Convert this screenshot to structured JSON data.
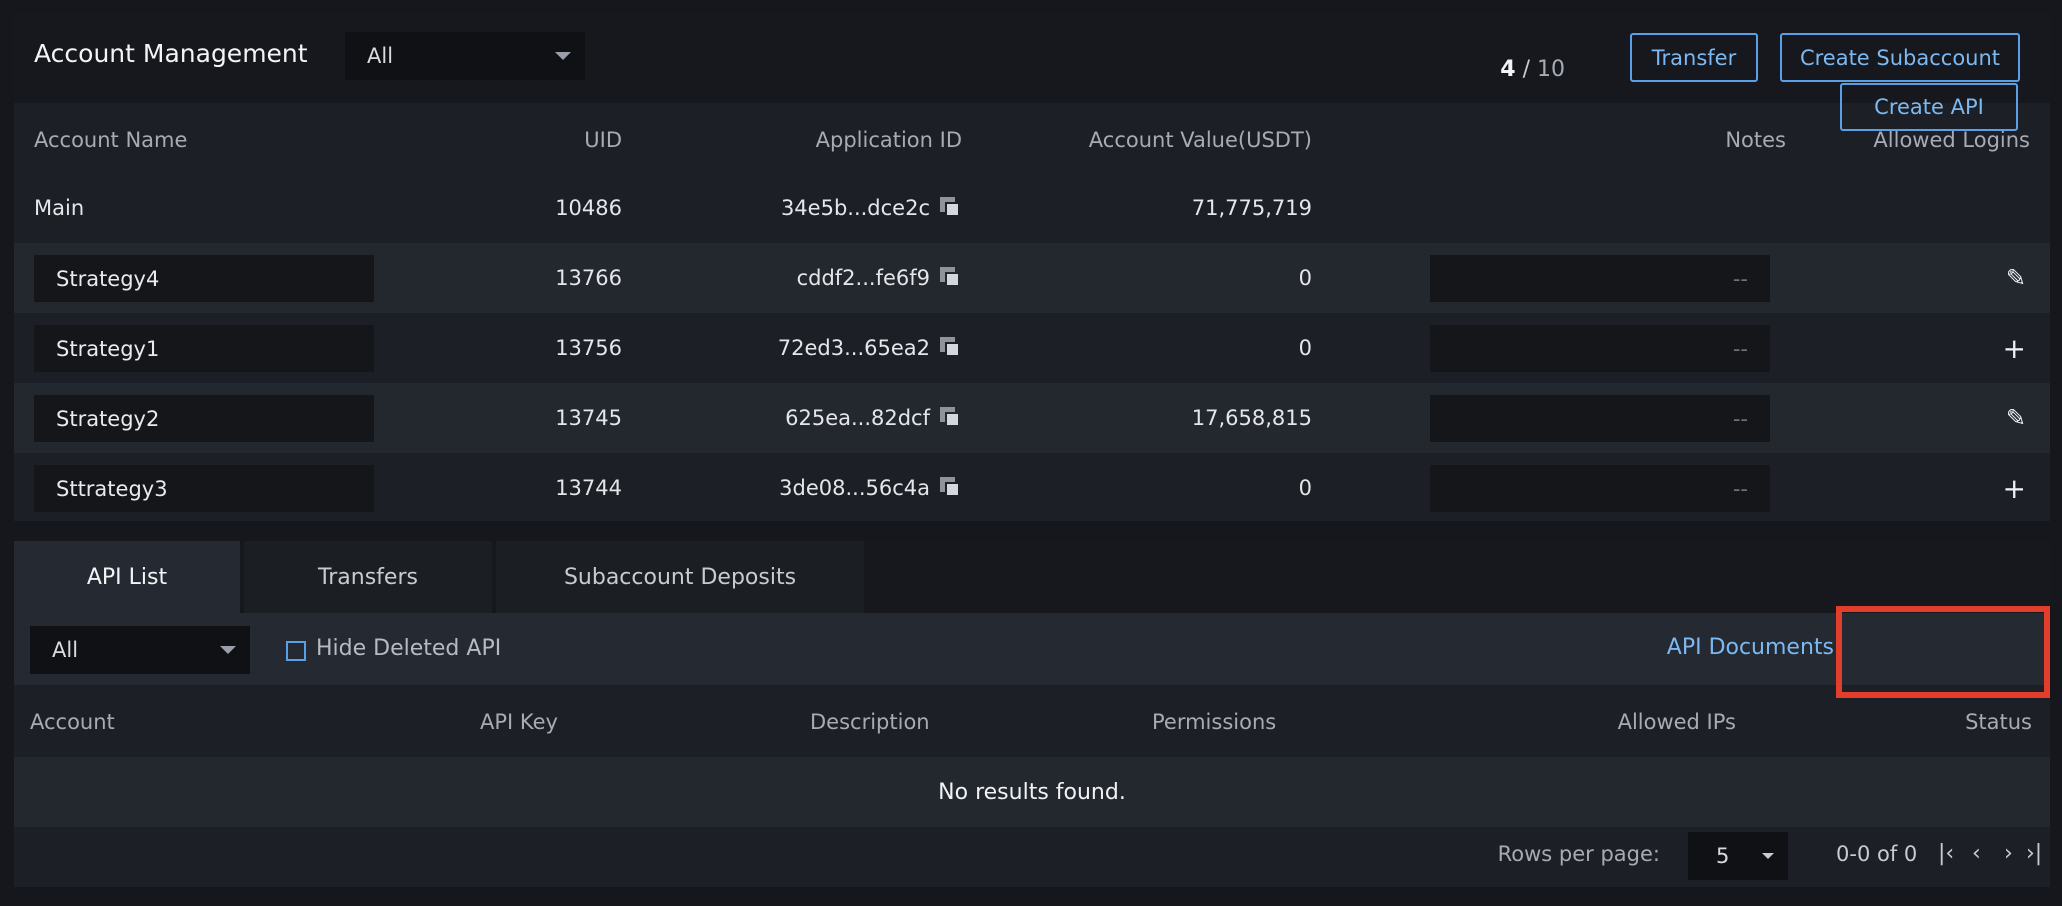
{
  "account_management": {
    "title": "Account Management",
    "filter": {
      "selected": "All"
    },
    "count": {
      "current": "4",
      "separator": " / ",
      "max": "10"
    },
    "transfer_label": "Transfer",
    "create_subaccount_label": "Create Subaccount",
    "columns": {
      "account_name": "Account Name",
      "uid": "UID",
      "application_id": "Application ID",
      "account_value": "Account Value(USDT)",
      "notes": "Notes",
      "allowed_logins": "Allowed Logins"
    },
    "main_row": {
      "name": "Main",
      "uid": "10486",
      "app_id": "34e5b...dce2c",
      "value": "71,775,719"
    },
    "rows": [
      {
        "name": "Strategy4",
        "uid": "13766",
        "app_id": "cddf2...fe6f9",
        "value": "0",
        "notes": "--",
        "action_icon": "pencil-icon",
        "action_glyph": "✎"
      },
      {
        "name": "Strategy1",
        "uid": "13756",
        "app_id": "72ed3...65ea2",
        "value": "0",
        "notes": "--",
        "action_icon": "plus-icon",
        "action_glyph": "+"
      },
      {
        "name": "Strategy2",
        "uid": "13745",
        "app_id": "625ea...82dcf",
        "value": "17,658,815",
        "notes": "--",
        "action_icon": "pencil-icon",
        "action_glyph": "✎"
      },
      {
        "name": "Sttrategy3",
        "uid": "13744",
        "app_id": "3de08...56c4a",
        "value": "0",
        "notes": "--",
        "action_icon": "plus-icon",
        "action_glyph": "+"
      }
    ]
  },
  "api_section": {
    "tabs": [
      {
        "label": "API List",
        "active": true
      },
      {
        "label": "Transfers",
        "active": false
      },
      {
        "label": "Subaccount Deposits",
        "active": false
      }
    ],
    "filter": {
      "selected": "All"
    },
    "hide_deleted_label": "Hide Deleted API",
    "hide_deleted_checked": false,
    "documents_link": "API Documents",
    "create_api_label": "Create API",
    "columns": {
      "account": "Account",
      "api_key": "API Key",
      "description": "Description",
      "permissions": "Permissions",
      "allowed_ips": "Allowed IPs",
      "status": "Status"
    },
    "empty_message": "No results found.",
    "pagination": {
      "rows_per_page_label": "Rows per page:",
      "rows_per_page": "5",
      "range": "0-0 of 0"
    }
  },
  "colors": {
    "accent": "#5aa0e6",
    "highlight": "#e33e2c",
    "background": "#15171c"
  }
}
